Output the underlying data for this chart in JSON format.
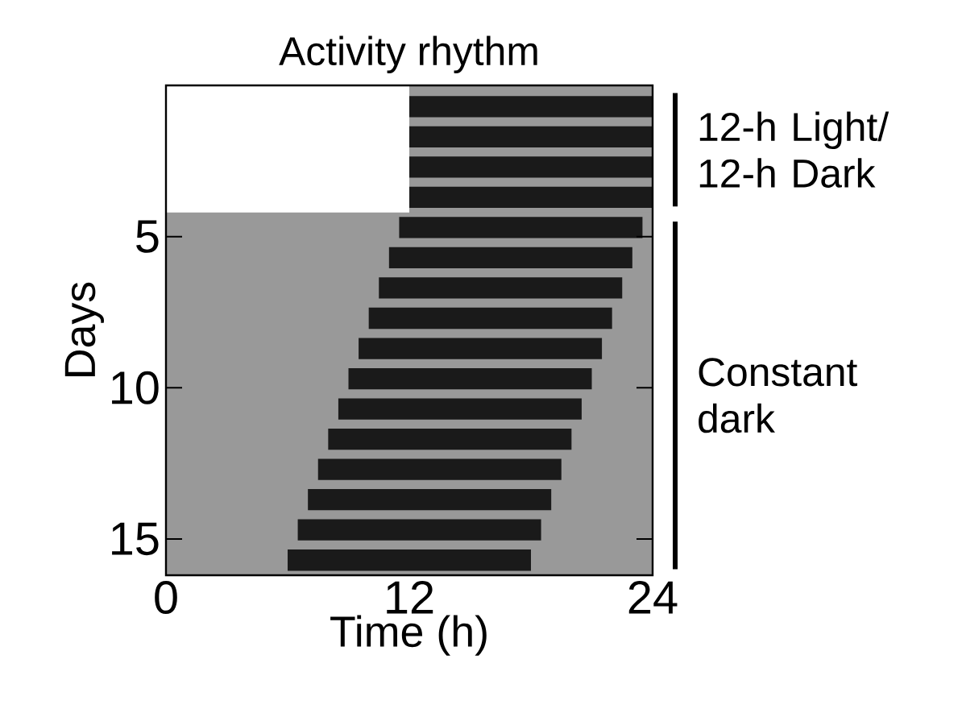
{
  "chart_data": {
    "type": "bar",
    "orientation": "horizontal",
    "title": "Activity rhythm",
    "xlabel": "Time (h)",
    "ylabel": "Days",
    "x": [
      0.7,
      1.7,
      2.7,
      3.7,
      4.7,
      5.7,
      6.7,
      7.7,
      8.7,
      9.7,
      10.7,
      11.7,
      12.7,
      13.7,
      14.7,
      15.7
    ],
    "base": [
      12,
      12,
      12,
      12,
      11.5,
      11,
      10.5,
      10,
      9.5,
      9,
      8.5,
      8,
      7.5,
      7,
      6.5,
      6
    ],
    "values": [
      12,
      12,
      12,
      12,
      12,
      12,
      12,
      12,
      12,
      12,
      12,
      12,
      12,
      12,
      12,
      12
    ],
    "color": "#1a1a1a",
    "xlim": [
      0,
      24
    ],
    "ylim": [
      16.2,
      0
    ],
    "xticks": [
      0,
      12,
      24
    ],
    "yticks": [
      5,
      10,
      15
    ],
    "bands": [
      {
        "axis": "x",
        "from": 12,
        "to": 24,
        "color": "#999999"
      },
      {
        "axis": "y",
        "from": 4.2,
        "to": 16.2,
        "color": "#999999"
      }
    ],
    "annotations": [
      "12-h Light/ 12-h Dark",
      "Constant dark"
    ]
  }
}
